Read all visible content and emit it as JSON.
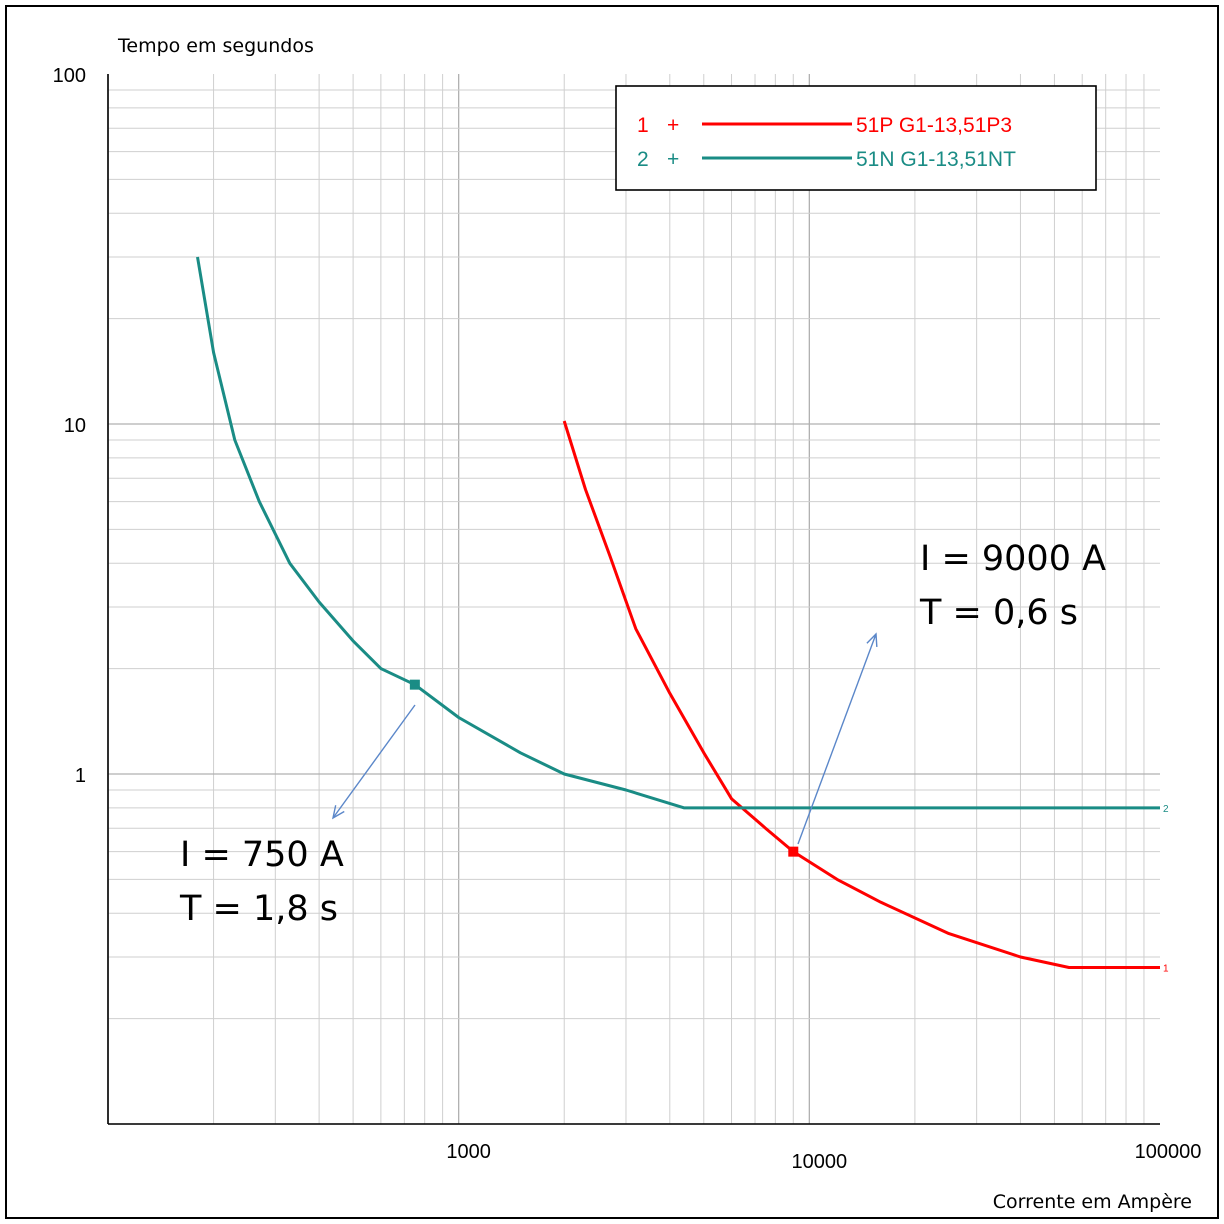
{
  "chart_data": {
    "type": "line",
    "ylabel": "Tempo em segundos",
    "xlabel": "Corrente em Ampère",
    "xscale": "log",
    "yscale": "log",
    "xlim": [
      100,
      100000
    ],
    "ylim": [
      0.1,
      100
    ],
    "grid": true,
    "legend_position": "top-right",
    "x_tick_labels": [
      {
        "value": 1000,
        "label": "1000"
      },
      {
        "value": 10000,
        "label": "10000"
      },
      {
        "value": 100000,
        "label": "100000"
      }
    ],
    "y_tick_labels": [
      {
        "value": 100,
        "label": "100"
      },
      {
        "value": 10,
        "label": "10"
      },
      {
        "value": 1,
        "label": "1"
      }
    ],
    "series": [
      {
        "name": "51P G1-13,51P3",
        "legend_index": "1",
        "legend_plus": "+",
        "end_label": "1",
        "color": "#ff0000",
        "points": [
          [
            2000,
            10.2
          ],
          [
            2300,
            6.5
          ],
          [
            2700,
            4.2
          ],
          [
            3200,
            2.6
          ],
          [
            4000,
            1.7
          ],
          [
            5000,
            1.15
          ],
          [
            6000,
            0.85
          ],
          [
            7500,
            0.7
          ],
          [
            9000,
            0.6
          ],
          [
            12000,
            0.5
          ],
          [
            16000,
            0.43
          ],
          [
            25000,
            0.35
          ],
          [
            40000,
            0.3
          ],
          [
            55000,
            0.28
          ],
          [
            100000,
            0.28
          ]
        ]
      },
      {
        "name": "51N G1-13,51NT",
        "legend_index": "2",
        "legend_plus": "+",
        "end_label": "2",
        "color": "#1a8c85",
        "points": [
          [
            180,
            30
          ],
          [
            200,
            16
          ],
          [
            230,
            9
          ],
          [
            270,
            6
          ],
          [
            330,
            4
          ],
          [
            400,
            3.1
          ],
          [
            500,
            2.4
          ],
          [
            600,
            2.0
          ],
          [
            750,
            1.8
          ],
          [
            1000,
            1.45
          ],
          [
            1500,
            1.15
          ],
          [
            2000,
            1.0
          ],
          [
            3000,
            0.9
          ],
          [
            4400,
            0.8
          ],
          [
            100000,
            0.8
          ]
        ]
      }
    ],
    "annotations": [
      {
        "lines": [
          "I = 750 A",
          "T = 1,8 s"
        ],
        "point": [
          750,
          1.8
        ],
        "color": "#1a8c85"
      },
      {
        "lines": [
          "I = 9000 A",
          "T = 0,6 s"
        ],
        "point": [
          9000,
          0.6
        ],
        "color": "#ff0000"
      }
    ]
  }
}
